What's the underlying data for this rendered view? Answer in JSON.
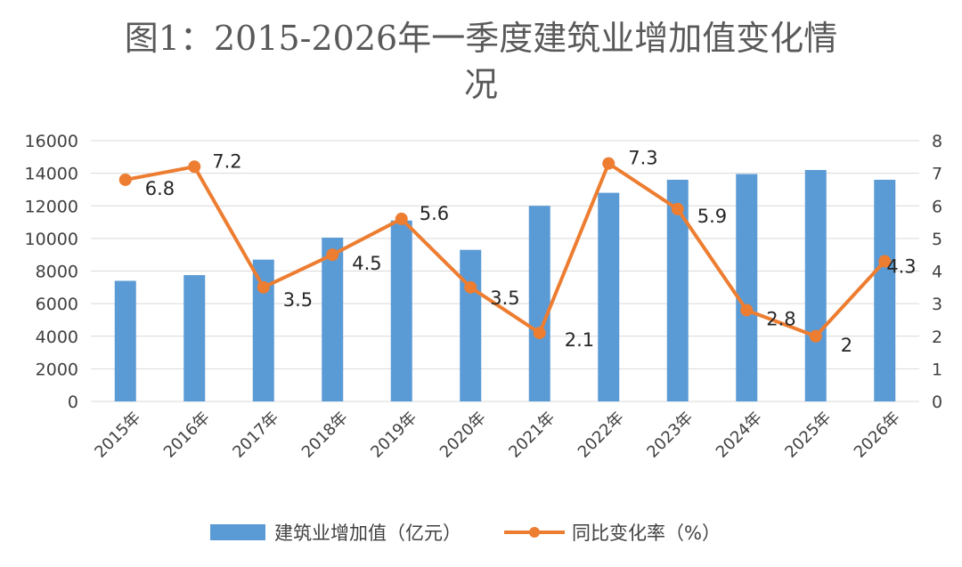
{
  "colors": {
    "bar": "#5b9bd5",
    "line": "#ed7d31",
    "grid": "#d9d9d9"
  },
  "chart_data": {
    "type": "bar",
    "title_line1": "图1：2015-2026年一季度建筑业增加值变化情",
    "title_line2": "况",
    "categories": [
      "2015年",
      "2016年",
      "2017年",
      "2018年",
      "2019年",
      "2020年",
      "2021年",
      "2022年",
      "2023年",
      "2024年",
      "2025年",
      "2026年"
    ],
    "series": [
      {
        "name": "建筑业增加值（亿元）",
        "type": "bar",
        "axis": "left",
        "values": [
          7400,
          7750,
          8700,
          10050,
          11100,
          9300,
          12000,
          12800,
          13600,
          13950,
          14200,
          13600
        ]
      },
      {
        "name": "同比变化率（%）",
        "type": "line",
        "axis": "right",
        "values": [
          6.8,
          7.2,
          3.5,
          4.5,
          5.6,
          3.5,
          2.1,
          7.3,
          5.9,
          2.8,
          2,
          4.3
        ],
        "labels": [
          "6.8",
          "7.2",
          "3.5",
          "4.5",
          "5.6",
          "3.5",
          "2.1",
          "7.3",
          "5.9",
          "2.8",
          "2",
          "4.3"
        ]
      }
    ],
    "y_left": {
      "min": 0,
      "max": 16000,
      "ticks": [
        "0",
        "2000",
        "4000",
        "6000",
        "8000",
        "10000",
        "12000",
        "14000",
        "16000"
      ]
    },
    "y_right": {
      "min": 0,
      "max": 8,
      "ticks": [
        "0",
        "1",
        "2",
        "3",
        "4",
        "5",
        "6",
        "7",
        "8"
      ]
    },
    "grid": true,
    "legend_position": "bottom"
  }
}
